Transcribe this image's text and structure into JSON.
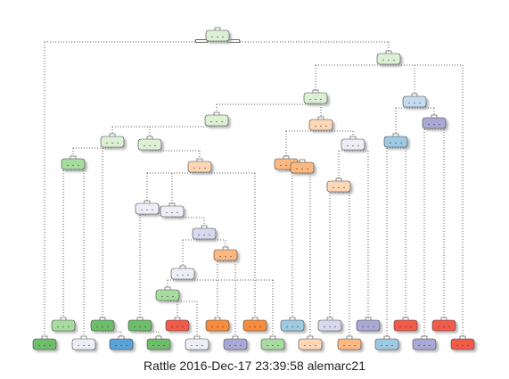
{
  "caption": "Rattle 2016-Dec-17 23:39:58 alemarc21",
  "palette": {
    "green_light": "#dcf0d4",
    "green_mid": "#a7dba0",
    "green_dark": "#6dbd6a",
    "white_blue": "#eeeef8",
    "lavender_light": "#d8d8ee",
    "lavender": "#aaa8d4",
    "blue_light": "#c6dbef",
    "blue_mid": "#9ecae1",
    "blue_dark": "#5aa3d6",
    "peach_light": "#fdd7b6",
    "peach": "#fdb882",
    "orange": "#f88c3c",
    "red": "#f25a48",
    "edge": "#555555"
  },
  "tree": {
    "node_count": 49,
    "leaf_count": 25
  }
}
